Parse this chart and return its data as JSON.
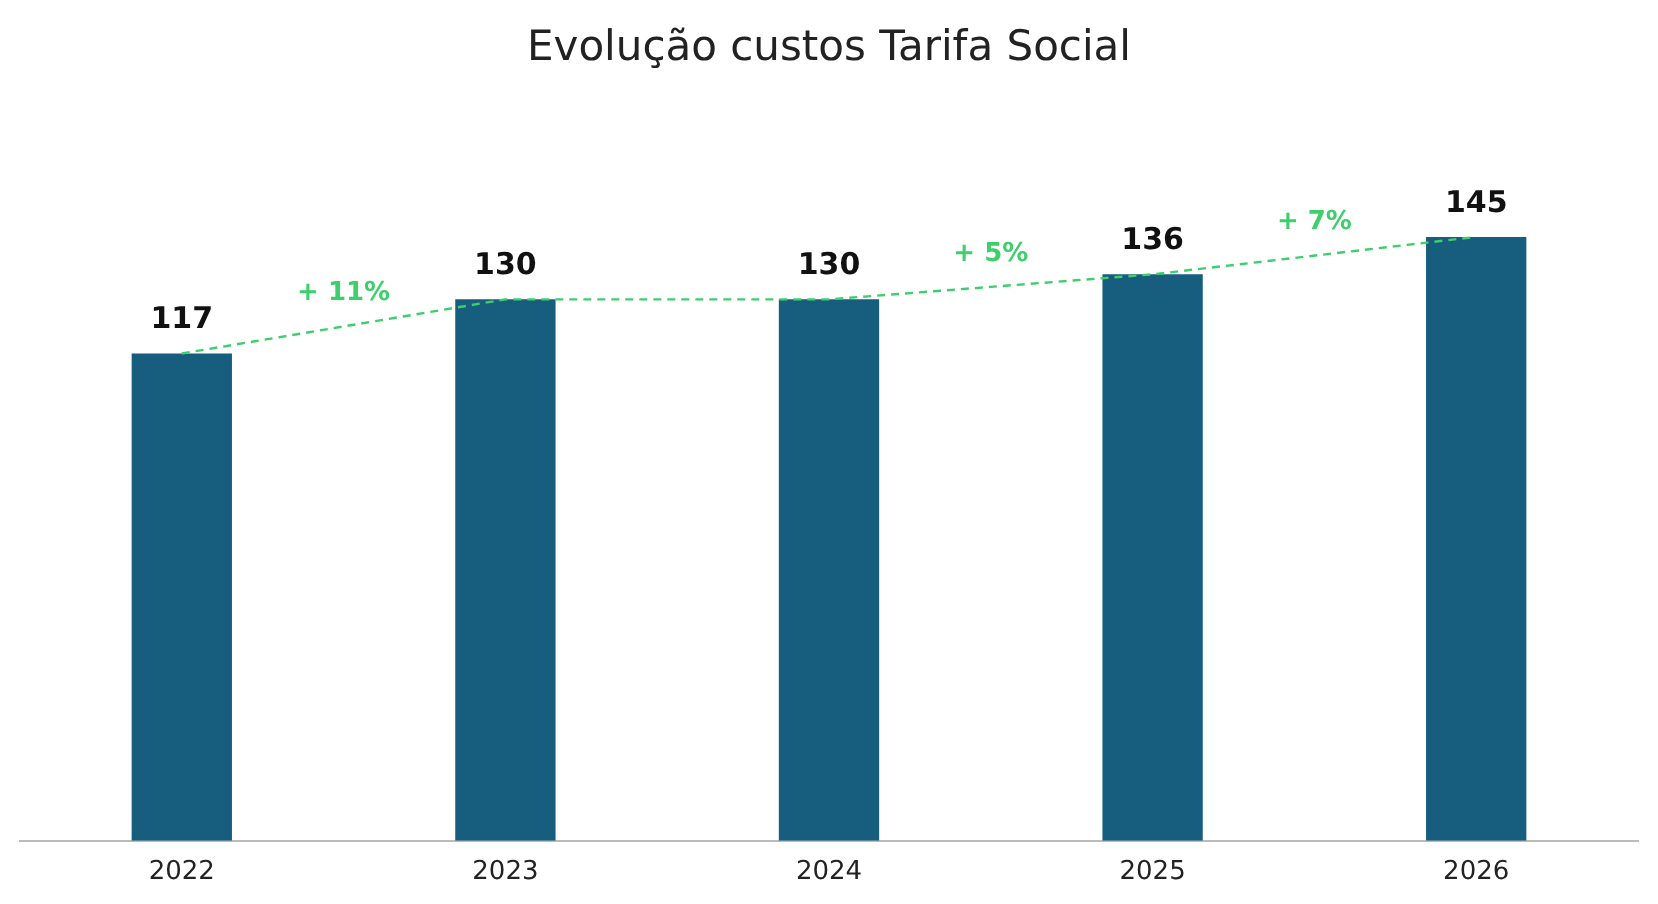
{
  "chart_data": {
    "type": "bar",
    "title": "Evolução custos Tarifa Social",
    "categories": [
      "2022",
      "2023",
      "2024",
      "2025",
      "2026"
    ],
    "series": [
      {
        "color": "#175e7e",
        "values": [
          117,
          130,
          130,
          136,
          145
        ],
        "value_labels": [
          "117",
          "130",
          "130",
          "136",
          "145"
        ]
      },
      {
        "type": "line",
        "color": "#3ecf6c",
        "line_style": "dashed",
        "marker": "none",
        "values": [
          117,
          130,
          130,
          136,
          145
        ]
      }
    ],
    "annotations": [
      "+ 11%",
      "+ 5%",
      "+ 7%"
    ],
    "tick_labels": "x",
    "grid": false,
    "legend": false
  }
}
